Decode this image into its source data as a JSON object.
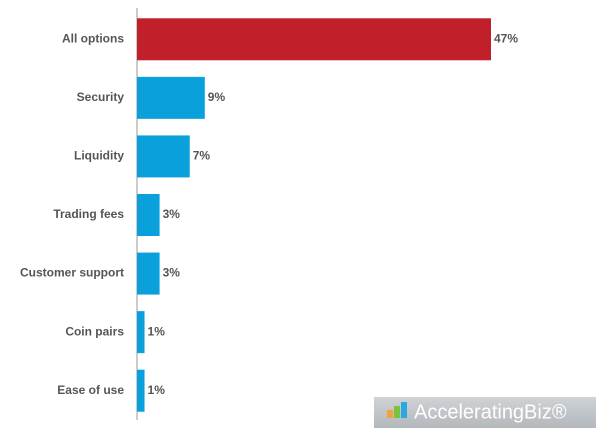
{
  "chart_data": {
    "type": "bar",
    "orientation": "horizontal",
    "categories": [
      "All options",
      "Security",
      "Liquidity",
      "Trading fees",
      "Customer support",
      "Coin pairs",
      "Ease of use"
    ],
    "values": [
      47,
      9,
      7,
      3,
      3,
      1,
      1
    ],
    "value_labels": [
      "47%",
      "9%",
      "7%",
      "3%",
      "3%",
      "1%",
      "1%"
    ],
    "colors": [
      "#c1202a",
      "#0aa0dc",
      "#0aa0dc",
      "#0aa0dc",
      "#0aa0dc",
      "#0aa0dc",
      "#0aa0dc"
    ],
    "watermark": "AcceleratingBiz®"
  }
}
